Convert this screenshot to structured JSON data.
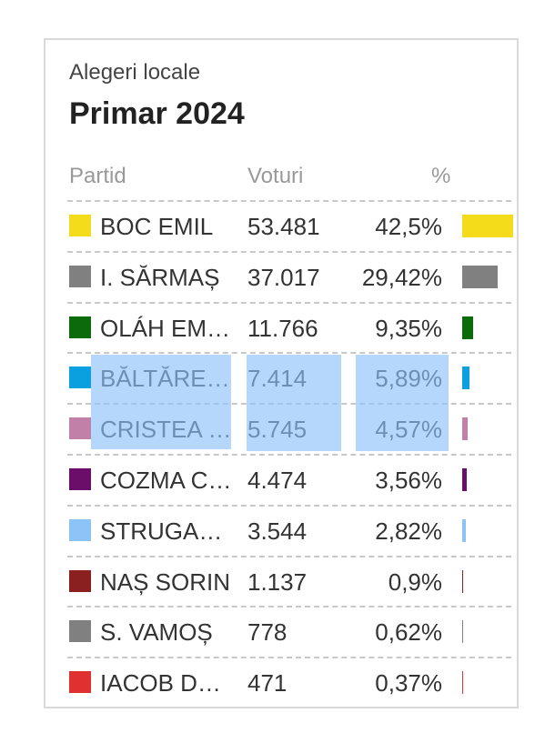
{
  "widget": {
    "subtitle": "Alegeri locale",
    "title": "Primar 2024",
    "columns": {
      "party": "Partid",
      "votes": "Voturi",
      "percent": "%"
    },
    "selection_color": "#8fc2fa",
    "rows": [
      {
        "name": "BOC EMIL",
        "votes": "53.481",
        "percent": "42,5%",
        "share": 42.5,
        "color": "#f5dc1a"
      },
      {
        "name": "I. SĂRMAȘ",
        "votes": "37.017",
        "percent": "29,42%",
        "share": 29.42,
        "color": "#808080"
      },
      {
        "name": "OLÁH EMESE",
        "votes": "11.766",
        "percent": "9,35%",
        "share": 9.35,
        "color": "#0b6b0b"
      },
      {
        "name": "BĂLTĂREȚU",
        "votes": "7.414",
        "percent": "5,89%",
        "share": 5.89,
        "color": "#0aa0e0"
      },
      {
        "name": "CRISTEA MIHAI",
        "votes": "5.745",
        "percent": "4,57%",
        "share": 4.57,
        "color": "#c080a8"
      },
      {
        "name": "COZMA CRISTIAN",
        "votes": "4.474",
        "percent": "3,56%",
        "share": 3.56,
        "color": "#6a0e6a"
      },
      {
        "name": "STRUGARIU",
        "votes": "3.544",
        "percent": "2,82%",
        "share": 2.82,
        "color": "#8cc4f8"
      },
      {
        "name": "NAȘ SORIN",
        "votes": "1.137",
        "percent": "0,9%",
        "share": 0.9,
        "color": "#8b2020"
      },
      {
        "name": "S. VAMOȘ",
        "votes": "778",
        "percent": "0,62%",
        "share": 0.62,
        "color": "#808080"
      },
      {
        "name": "IACOB DANIEL",
        "votes": "471",
        "percent": "0,37%",
        "share": 0.37,
        "color": "#e03030"
      }
    ]
  }
}
